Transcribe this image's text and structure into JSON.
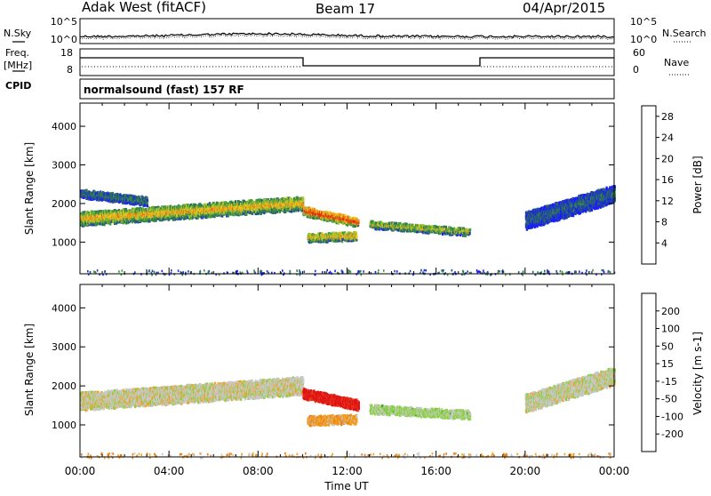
{
  "header": {
    "site": "Adak West (fitACF)",
    "beam": "Beam 17",
    "date": "04/Apr/2015"
  },
  "top_panels": {
    "nsky_label": "N.Sky",
    "nsearch_label": "N.Search",
    "freq_label_line1": "Freq.",
    "freq_label_line2": "[MHz]",
    "nave_label": "Nave",
    "cpid_label": "CPID",
    "cpid_value": "normalsound (fast) 157 RF",
    "noise_ticks_left": [
      "10^5",
      "10^0"
    ],
    "noise_ticks_right": [
      "10^5",
      "10^0"
    ],
    "freq_ticks_left": [
      "18",
      "8"
    ],
    "freq_ticks_right": [
      "60",
      "0"
    ]
  },
  "colors": {
    "power_scale": [
      "#1a1aff",
      "#2040b0",
      "#2f6f5a",
      "#3c9a3c",
      "#a8c832",
      "#f0c81e",
      "#f08c14",
      "#e85a10",
      "#e01e10"
    ],
    "velocity_scale": [
      "#1a28c8",
      "#2a56b4",
      "#34a02c",
      "#88d23c",
      "#c8c8c8",
      "#f0a01e",
      "#f07814",
      "#e8461e",
      "#e01414"
    ]
  },
  "chart_data": [
    {
      "type": "heatmap",
      "title": "Power",
      "xlabel": "Time UT",
      "ylabel": "Slant Range [km]",
      "x_ticks": [
        "00:00",
        "04:00",
        "08:00",
        "12:00",
        "16:00",
        "20:00",
        "00:00"
      ],
      "x_range_hours": [
        0,
        24
      ],
      "y_ticks": [
        1000,
        2000,
        3000,
        4000
      ],
      "y_range_km": [
        180,
        4600
      ],
      "colorbar_label": "Power [dB]",
      "colorbar_ticks": [
        "4",
        "8",
        "12",
        "16",
        "20",
        "24",
        "28"
      ],
      "colorbar_range": [
        0,
        30
      ],
      "bands": [
        {
          "t": [
            0,
            10
          ],
          "center_km": [
            1650,
            2050
          ],
          "width_km": 320,
          "level": 0.55
        },
        {
          "t": [
            0,
            3
          ],
          "center_km": [
            2300,
            2100
          ],
          "width_km": 180,
          "level": 0.25
        },
        {
          "t": [
            10,
            12.5
          ],
          "center_km": [
            1850,
            1550
          ],
          "width_km": 200,
          "level": 0.8
        },
        {
          "t": [
            10.2,
            12.4
          ],
          "center_km": [
            1150,
            1200
          ],
          "width_km": 180,
          "level": 0.55
        },
        {
          "t": [
            13,
            17.5
          ],
          "center_km": [
            1500,
            1300
          ],
          "width_km": 150,
          "level": 0.45
        },
        {
          "t": [
            20,
            24
          ],
          "center_km": [
            1600,
            2300
          ],
          "width_km": 420,
          "level": 0.2
        }
      ]
    },
    {
      "type": "heatmap",
      "title": "Velocity",
      "xlabel": "Time UT",
      "ylabel": "Slant Range [km]",
      "x_ticks": [
        "00:00",
        "04:00",
        "08:00",
        "12:00",
        "16:00",
        "20:00",
        "00:00"
      ],
      "x_range_hours": [
        0,
        24
      ],
      "y_ticks": [
        1000,
        2000,
        3000,
        4000
      ],
      "y_range_km": [
        180,
        4600
      ],
      "colorbar_label": "Velocity [m s-1]",
      "colorbar_ticks": [
        "200",
        "100",
        "50",
        "15",
        "-15",
        "-50",
        "-100",
        "-200"
      ],
      "colorbar_range": [
        -250,
        250
      ],
      "bands": [
        {
          "t": [
            0,
            10
          ],
          "center_km": [
            1650,
            2050
          ],
          "width_km": 420,
          "velocity": 0
        },
        {
          "t": [
            10,
            12.5
          ],
          "center_km": [
            1850,
            1550
          ],
          "width_km": 220,
          "velocity": -220
        },
        {
          "t": [
            10.2,
            12.4
          ],
          "center_km": [
            1150,
            1200
          ],
          "width_km": 200,
          "velocity": -60
        },
        {
          "t": [
            13,
            17.5
          ],
          "center_km": [
            1450,
            1300
          ],
          "width_km": 180,
          "velocity": 40
        },
        {
          "t": [
            20,
            24
          ],
          "center_km": [
            1600,
            2300
          ],
          "width_km": 420,
          "velocity": 5
        }
      ]
    }
  ]
}
